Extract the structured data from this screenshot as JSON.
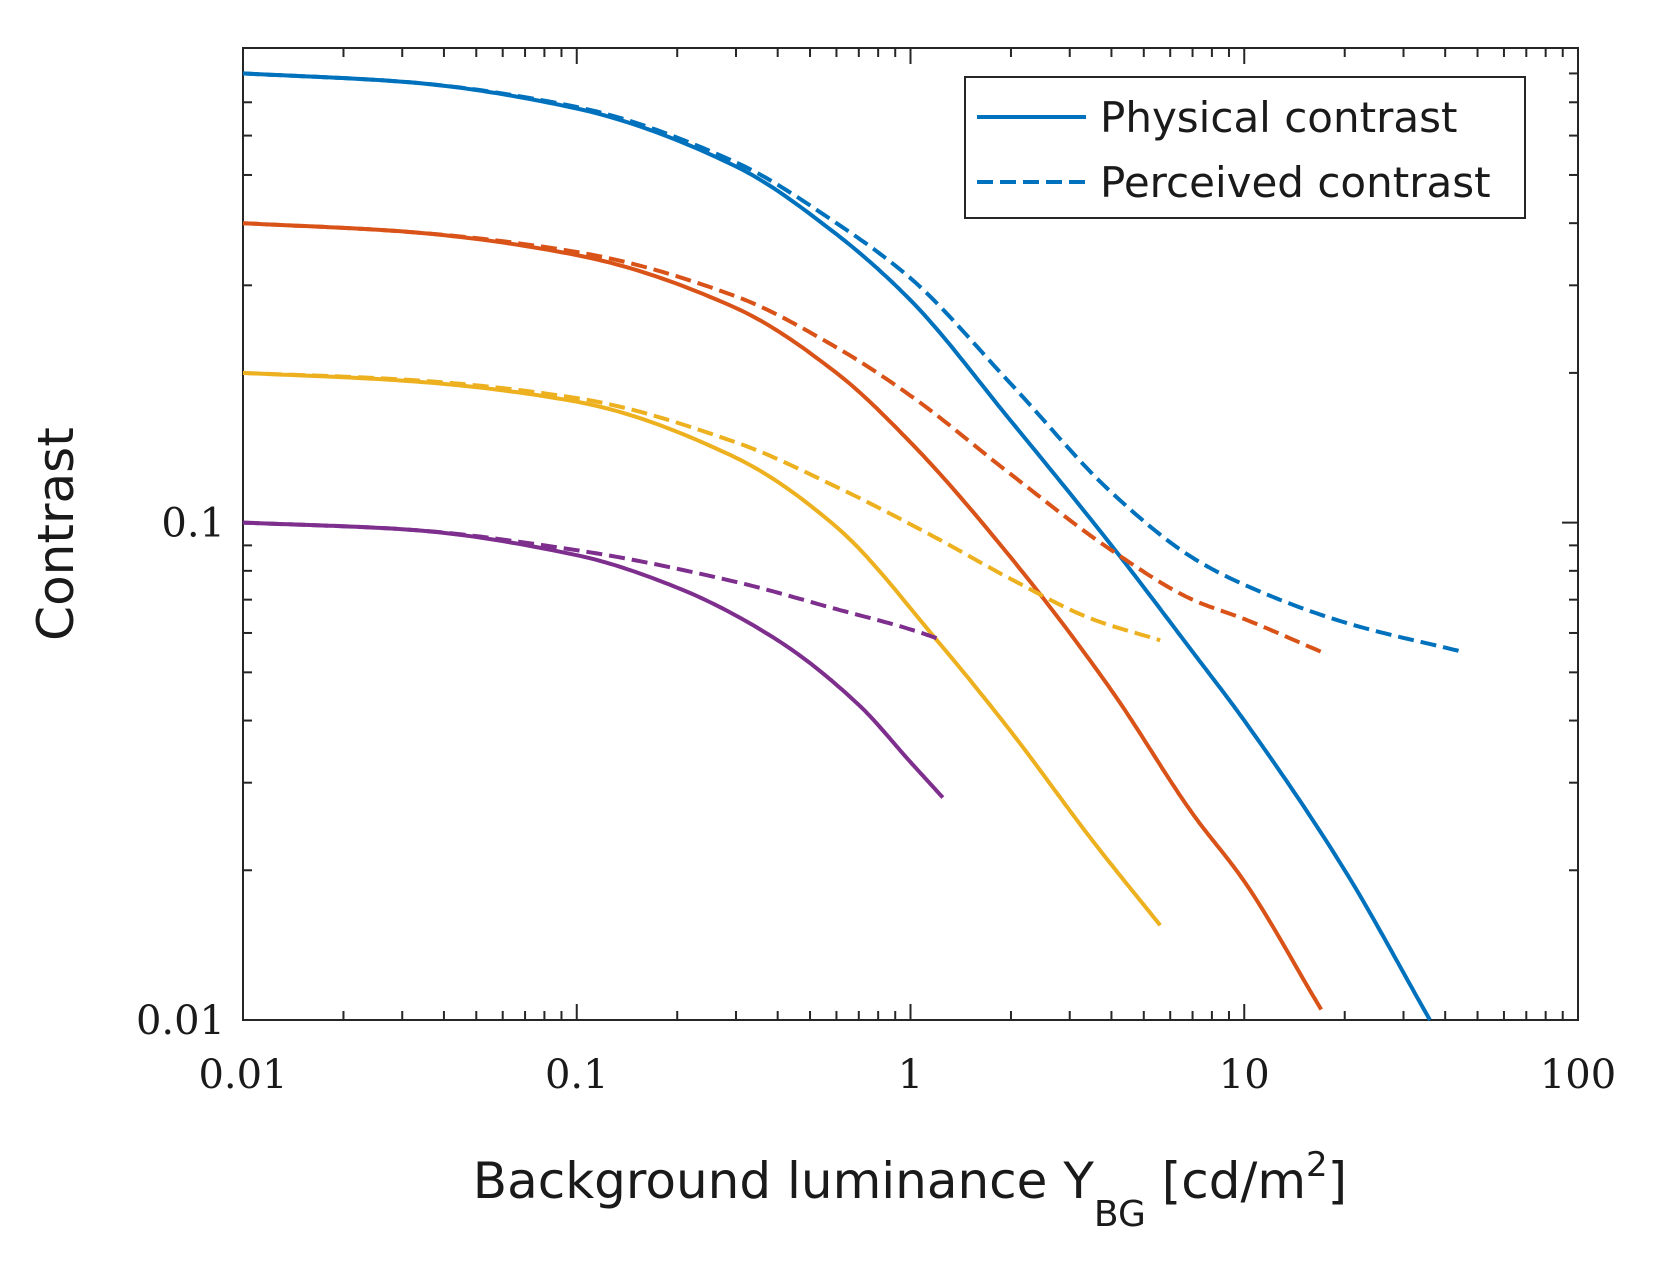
{
  "chart_data": {
    "type": "line",
    "xscale": "log",
    "yscale": "log",
    "xlim": [
      0.01,
      100
    ],
    "ylim": [
      0.01,
      0.9
    ],
    "xticks": [
      0.01,
      0.1,
      1,
      10,
      100
    ],
    "xtick_labels": [
      "0.01",
      "0.1",
      "1",
      "10",
      "100"
    ],
    "yticks": [
      0.01,
      0.1
    ],
    "ytick_labels": [
      "0.01",
      "0.1"
    ],
    "xlabel_parts": {
      "main": "Background luminance Y",
      "sub": "BG",
      "unit_pre": " [cd/m",
      "sup": "2",
      "unit_post": "]"
    },
    "ylabel": "Contrast",
    "grid": false,
    "legend": {
      "placement": "top-right",
      "entries": [
        {
          "label": "Physical contrast",
          "style": "solid",
          "color": "#0072BD"
        },
        {
          "label": "Perceived contrast",
          "style": "dashed",
          "color": "#0072BD"
        }
      ]
    },
    "series": [
      {
        "color": "#0072BD",
        "style": "solid",
        "x": [
          0.01,
          0.03,
          0.1,
          0.3,
          0.6,
          1,
          2,
          4,
          7,
          10,
          20,
          36
        ],
        "y": [
          0.8,
          0.77,
          0.68,
          0.52,
          0.38,
          0.28,
          0.16,
          0.09,
          0.055,
          0.04,
          0.02,
          0.01
        ]
      },
      {
        "color": "#0072BD",
        "style": "dashed",
        "x": [
          0.01,
          0.03,
          0.1,
          0.3,
          0.6,
          1,
          2,
          4,
          7,
          10,
          20,
          45
        ],
        "y": [
          0.8,
          0.77,
          0.685,
          0.53,
          0.4,
          0.31,
          0.19,
          0.115,
          0.085,
          0.075,
          0.063,
          0.055
        ]
      },
      {
        "color": "#D95319",
        "style": "solid",
        "x": [
          0.01,
          0.03,
          0.1,
          0.3,
          0.6,
          1,
          2,
          4,
          7,
          10,
          17
        ],
        "y": [
          0.4,
          0.385,
          0.345,
          0.27,
          0.2,
          0.145,
          0.085,
          0.046,
          0.026,
          0.019,
          0.0105
        ]
      },
      {
        "color": "#D95319",
        "style": "dashed",
        "x": [
          0.01,
          0.03,
          0.1,
          0.3,
          0.6,
          1,
          2,
          4,
          7,
          10,
          17
        ],
        "y": [
          0.4,
          0.385,
          0.35,
          0.285,
          0.225,
          0.18,
          0.125,
          0.088,
          0.07,
          0.064,
          0.055
        ]
      },
      {
        "color": "#EDB120",
        "style": "solid",
        "x": [
          0.01,
          0.03,
          0.1,
          0.3,
          0.6,
          1.2,
          2,
          3.5,
          5.6
        ],
        "y": [
          0.2,
          0.193,
          0.175,
          0.135,
          0.098,
          0.058,
          0.038,
          0.023,
          0.0155
        ]
      },
      {
        "color": "#EDB120",
        "style": "dashed",
        "x": [
          0.01,
          0.03,
          0.1,
          0.3,
          0.6,
          1.2,
          2,
          3.5,
          5.6
        ],
        "y": [
          0.2,
          0.194,
          0.178,
          0.145,
          0.118,
          0.093,
          0.077,
          0.064,
          0.058
        ]
      },
      {
        "color": "#7E2F8E",
        "style": "solid",
        "x": [
          0.01,
          0.03,
          0.1,
          0.2,
          0.4,
          0.7,
          1.0,
          1.25
        ],
        "y": [
          0.1,
          0.097,
          0.086,
          0.074,
          0.058,
          0.043,
          0.033,
          0.028
        ]
      },
      {
        "color": "#7E2F8E",
        "style": "dashed",
        "x": [
          0.01,
          0.03,
          0.1,
          0.3,
          0.6,
          1.0,
          1.25
        ],
        "y": [
          0.1,
          0.097,
          0.088,
          0.076,
          0.067,
          0.061,
          0.058
        ]
      }
    ]
  }
}
